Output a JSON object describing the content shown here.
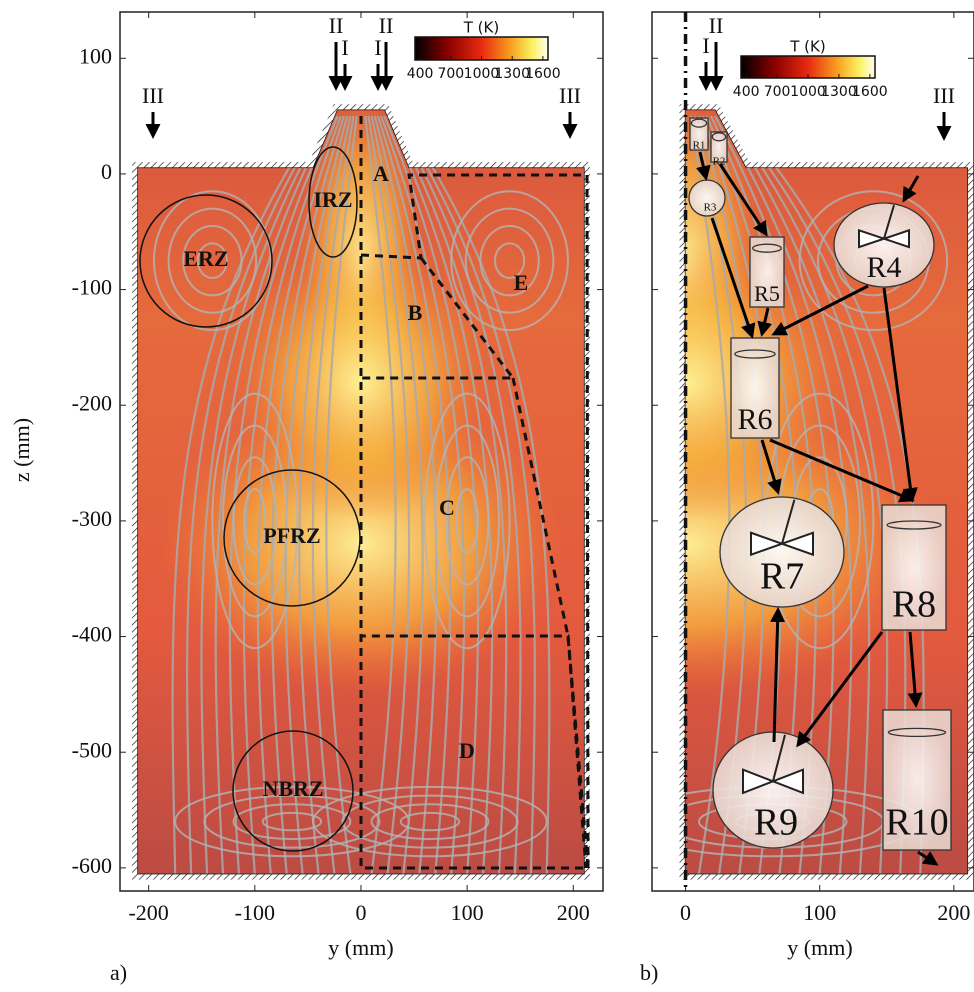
{
  "chart_data": [
    {
      "type": "field",
      "panel_label": "a)",
      "xlabel": "y (mm)",
      "ylabel": "z (mm)",
      "xlim": [
        -227,
        228
      ],
      "ylim": [
        -620,
        140
      ],
      "xticks": [
        -200,
        -100,
        0,
        100,
        200
      ],
      "yticks": [
        100,
        0,
        -100,
        -200,
        -300,
        -400,
        -500,
        -600
      ],
      "colorbar": {
        "title": "T (K)",
        "clim": [
          350,
          1650
        ],
        "ticks": [
          400,
          700,
          1000,
          1300,
          1600
        ]
      },
      "inlet_labels": [
        "II",
        "I",
        "I",
        "II",
        "III",
        "III"
      ],
      "zone_labels": [
        "ERZ",
        "IRZ",
        "PFRZ",
        "NBRZ"
      ],
      "region_labels": [
        "A",
        "B",
        "C",
        "D",
        "E"
      ]
    },
    {
      "type": "network",
      "panel_label": "b)",
      "xlabel": "y (mm)",
      "xlim": [
        -25,
        215
      ],
      "ylim": [
        -620,
        140
      ],
      "xticks": [
        0,
        100,
        200
      ],
      "colorbar": {
        "title": "T (K)",
        "clim": [
          350,
          1650
        ],
        "ticks": [
          400,
          700,
          1000,
          1300,
          1600
        ]
      },
      "inlet_labels": [
        "II",
        "I",
        "III"
      ],
      "reactor_labels": [
        "R1",
        "R2",
        "R3",
        "R4",
        "R5",
        "R6",
        "R7",
        "R8",
        "R9",
        "R10"
      ]
    }
  ]
}
